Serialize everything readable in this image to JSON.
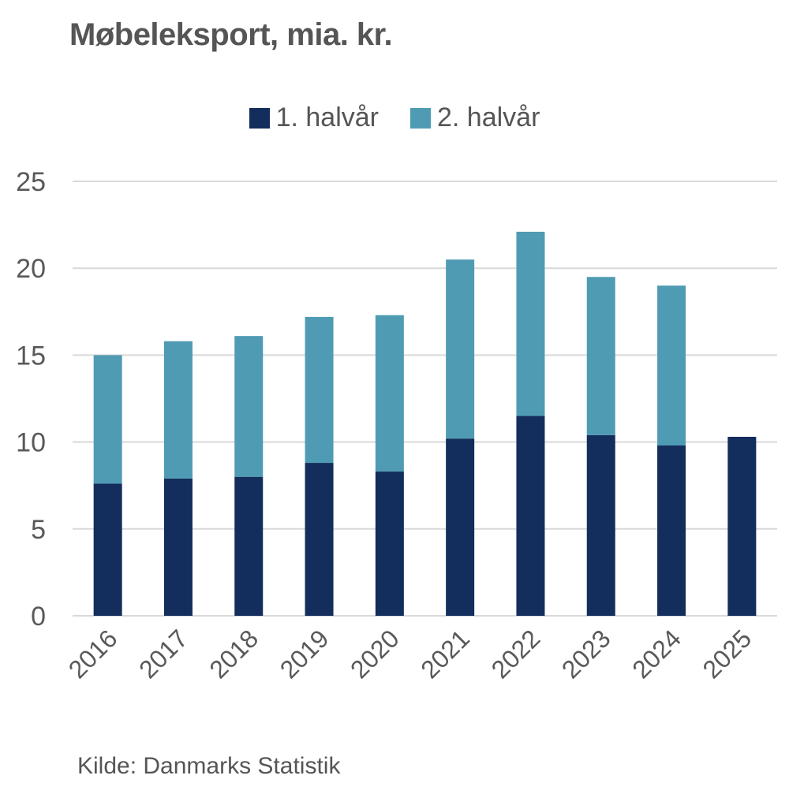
{
  "chart_data": {
    "type": "bar",
    "stacked": true,
    "title": "Møbeleksport, mia. kr.",
    "xlabel": "",
    "ylabel": "",
    "ylim": [
      0,
      25
    ],
    "yticks": [
      "0",
      "5",
      "10",
      "15",
      "20",
      "25"
    ],
    "grid": true,
    "legend_position": "top-center",
    "categories": [
      "2016",
      "2017",
      "2018",
      "2019",
      "2020",
      "2021",
      "2022",
      "2023",
      "2024",
      "2025"
    ],
    "series": [
      {
        "name": "1. halvår",
        "color": "#132d5c",
        "values": [
          7.6,
          7.9,
          8.0,
          8.8,
          8.3,
          10.2,
          11.5,
          10.4,
          9.8,
          10.3
        ]
      },
      {
        "name": "2. halvår",
        "color": "#4f9bb3",
        "values": [
          7.4,
          7.9,
          8.1,
          8.4,
          9.0,
          10.3,
          10.6,
          9.1,
          9.2,
          null
        ]
      }
    ],
    "source": "Kilde: Danmarks Statistik"
  }
}
